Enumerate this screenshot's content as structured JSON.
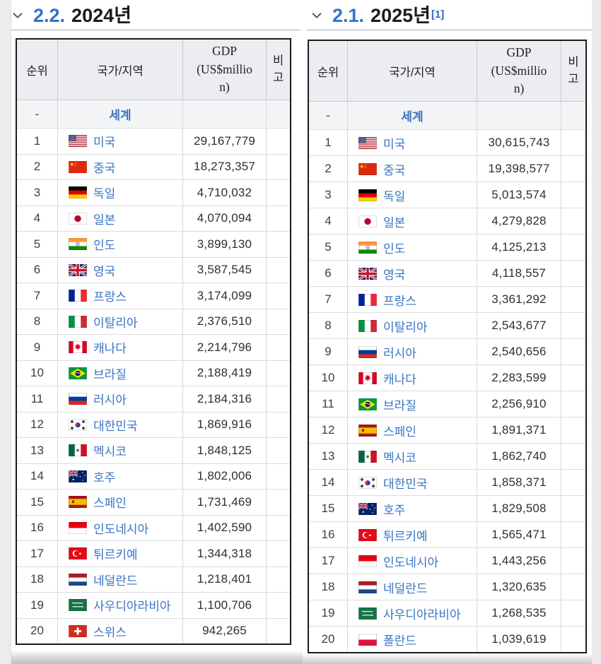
{
  "colors": {
    "link_blue": "#3a74c2",
    "heading_number_blue": "#2f74c9",
    "reference_blue": "#3366cc",
    "header_background": "#ebedf0",
    "table_border_black": "#1a1c1e"
  },
  "sections": [
    {
      "heading": {
        "number": "2.2.",
        "title": "2024년",
        "ref": ""
      },
      "table": {
        "headers": {
          "rank": "순위",
          "country": "국가/지역",
          "gdp": "GDP (US$million)",
          "note": "비고"
        },
        "world_row": {
          "rank": "-",
          "label": "세계",
          "gdp": "",
          "note": ""
        },
        "rows": [
          {
            "rank": "1",
            "flag": "us",
            "country": "미국",
            "gdp": "29,167,779",
            "note": ""
          },
          {
            "rank": "2",
            "flag": "cn",
            "country": "중국",
            "gdp": "18,273,357",
            "note": ""
          },
          {
            "rank": "3",
            "flag": "de",
            "country": "독일",
            "gdp": "4,710,032",
            "note": ""
          },
          {
            "rank": "4",
            "flag": "jp",
            "country": "일본",
            "gdp": "4,070,094",
            "note": ""
          },
          {
            "rank": "5",
            "flag": "in",
            "country": "인도",
            "gdp": "3,899,130",
            "note": ""
          },
          {
            "rank": "6",
            "flag": "gb",
            "country": "영국",
            "gdp": "3,587,545",
            "note": ""
          },
          {
            "rank": "7",
            "flag": "fr",
            "country": "프랑스",
            "gdp": "3,174,099",
            "note": ""
          },
          {
            "rank": "8",
            "flag": "it",
            "country": "이탈리아",
            "gdp": "2,376,510",
            "note": ""
          },
          {
            "rank": "9",
            "flag": "ca",
            "country": "캐나다",
            "gdp": "2,214,796",
            "note": ""
          },
          {
            "rank": "10",
            "flag": "br",
            "country": "브라질",
            "gdp": "2,188,419",
            "note": ""
          },
          {
            "rank": "11",
            "flag": "ru",
            "country": "러시아",
            "gdp": "2,184,316",
            "note": ""
          },
          {
            "rank": "12",
            "flag": "kr",
            "country": "대한민국",
            "gdp": "1,869,916",
            "note": ""
          },
          {
            "rank": "13",
            "flag": "mx",
            "country": "멕시코",
            "gdp": "1,848,125",
            "note": ""
          },
          {
            "rank": "14",
            "flag": "au",
            "country": "호주",
            "gdp": "1,802,006",
            "note": ""
          },
          {
            "rank": "15",
            "flag": "es",
            "country": "스페인",
            "gdp": "1,731,469",
            "note": ""
          },
          {
            "rank": "16",
            "flag": "id",
            "country": "인도네시아",
            "gdp": "1,402,590",
            "note": ""
          },
          {
            "rank": "17",
            "flag": "tr",
            "country": "튀르키예",
            "gdp": "1,344,318",
            "note": ""
          },
          {
            "rank": "18",
            "flag": "nl",
            "country": "네덜란드",
            "gdp": "1,218,401",
            "note": ""
          },
          {
            "rank": "19",
            "flag": "sa",
            "country": "사우디아라비아",
            "gdp": "1,100,706",
            "note": ""
          },
          {
            "rank": "20",
            "flag": "ch",
            "country": "스위스",
            "gdp": "942,265",
            "note": ""
          }
        ]
      }
    },
    {
      "heading": {
        "number": "2.1.",
        "title": "2025년",
        "ref": "[1]"
      },
      "table": {
        "headers": {
          "rank": "순위",
          "country": "국가/지역",
          "gdp": "GDP (US$million)",
          "note": "비고"
        },
        "world_row": {
          "rank": "-",
          "label": "세계",
          "gdp": "",
          "note": ""
        },
        "rows": [
          {
            "rank": "1",
            "flag": "us",
            "country": "미국",
            "gdp": "30,615,743",
            "note": ""
          },
          {
            "rank": "2",
            "flag": "cn",
            "country": "중국",
            "gdp": "19,398,577",
            "note": ""
          },
          {
            "rank": "3",
            "flag": "de",
            "country": "독일",
            "gdp": "5,013,574",
            "note": ""
          },
          {
            "rank": "4",
            "flag": "jp",
            "country": "일본",
            "gdp": "4,279,828",
            "note": ""
          },
          {
            "rank": "5",
            "flag": "in",
            "country": "인도",
            "gdp": "4,125,213",
            "note": ""
          },
          {
            "rank": "6",
            "flag": "gb",
            "country": "영국",
            "gdp": "4,118,557",
            "note": ""
          },
          {
            "rank": "7",
            "flag": "fr",
            "country": "프랑스",
            "gdp": "3,361,292",
            "note": ""
          },
          {
            "rank": "8",
            "flag": "it",
            "country": "이탈리아",
            "gdp": "2,543,677",
            "note": ""
          },
          {
            "rank": "9",
            "flag": "ru",
            "country": "러시아",
            "gdp": "2,540,656",
            "note": ""
          },
          {
            "rank": "10",
            "flag": "ca",
            "country": "캐나다",
            "gdp": "2,283,599",
            "note": ""
          },
          {
            "rank": "11",
            "flag": "br",
            "country": "브라질",
            "gdp": "2,256,910",
            "note": ""
          },
          {
            "rank": "12",
            "flag": "es",
            "country": "스페인",
            "gdp": "1,891,371",
            "note": ""
          },
          {
            "rank": "13",
            "flag": "mx",
            "country": "멕시코",
            "gdp": "1,862,740",
            "note": ""
          },
          {
            "rank": "14",
            "flag": "kr",
            "country": "대한민국",
            "gdp": "1,858,371",
            "note": ""
          },
          {
            "rank": "15",
            "flag": "au",
            "country": "호주",
            "gdp": "1,829,508",
            "note": ""
          },
          {
            "rank": "16",
            "flag": "tr",
            "country": "튀르키예",
            "gdp": "1,565,471",
            "note": ""
          },
          {
            "rank": "17",
            "flag": "id",
            "country": "인도네시아",
            "gdp": "1,443,256",
            "note": ""
          },
          {
            "rank": "18",
            "flag": "nl",
            "country": "네덜란드",
            "gdp": "1,320,635",
            "note": ""
          },
          {
            "rank": "19",
            "flag": "sa",
            "country": "사우디아라비아",
            "gdp": "1,268,535",
            "note": ""
          },
          {
            "rank": "20",
            "flag": "pl",
            "country": "폴란드",
            "gdp": "1,039,619",
            "note": ""
          }
        ]
      }
    }
  ]
}
